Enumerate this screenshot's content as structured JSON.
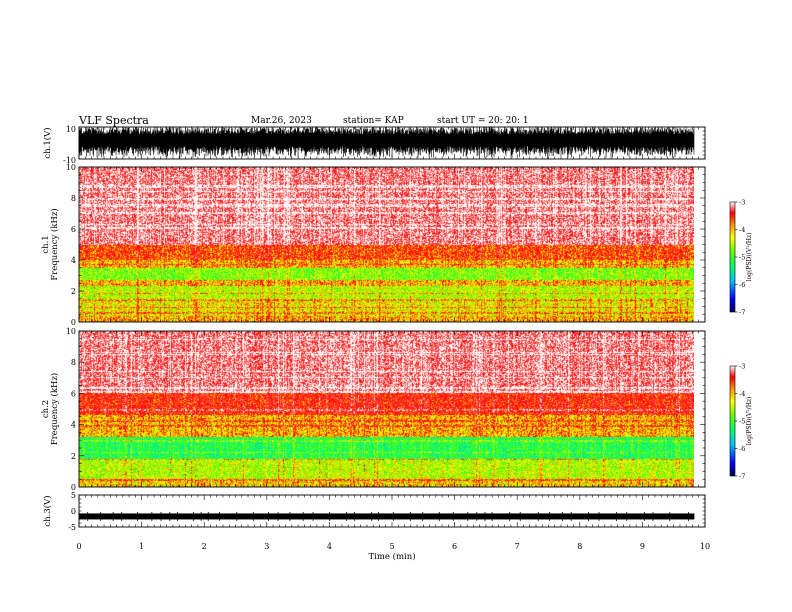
{
  "header": {
    "title": "VLF Spectra",
    "date": "Mar.26, 2023",
    "station": "station= KAP",
    "start": "start  UT  =   20: 20: 1"
  },
  "chart_data": [
    {
      "type": "line",
      "name": "ch1-waveform",
      "ylabel": "ch.1(V)",
      "ylim": [
        -10,
        10
      ],
      "y_tick_labels": [
        "-10",
        "10"
      ],
      "xlim": [
        0,
        10
      ],
      "x_data_end": 9.83
    },
    {
      "type": "heatmap",
      "name": "ch1-spectrogram",
      "ylabel_line1": "ch.1",
      "ylabel_line2": "Frequency  (kHz)",
      "ylim": [
        0,
        10
      ],
      "y_ticks": [
        0,
        2,
        4,
        6,
        8,
        10
      ],
      "xlim": [
        0,
        10
      ],
      "x_data_end": 9.83,
      "bands": [
        {
          "from": 0,
          "to": 0.4,
          "level": -4.3
        },
        {
          "from": 0.4,
          "to": 1.4,
          "level": -4.5
        },
        {
          "from": 1.4,
          "to": 2.3,
          "level": -4.7
        },
        {
          "from": 2.3,
          "to": 2.7,
          "level": -4.3
        },
        {
          "from": 2.7,
          "to": 3.5,
          "level": -4.9
        },
        {
          "from": 3.5,
          "to": 4.0,
          "level": -4.3
        },
        {
          "from": 4.0,
          "to": 5.0,
          "level": -4.0
        },
        {
          "from": 5.0,
          "to": 10.0,
          "level": -3.3
        }
      ],
      "colorbar": {
        "min": -7,
        "max": -3,
        "ticks": [
          -3,
          -4,
          -5,
          -6,
          -7
        ],
        "label": "log(PSD)(V²/Hz)"
      }
    },
    {
      "type": "heatmap",
      "name": "ch2-spectrogram",
      "ylabel_line1": "ch.2",
      "ylabel_line2": "Frequency  (kHz)",
      "ylim": [
        0,
        10
      ],
      "y_ticks": [
        0,
        2,
        4,
        6,
        8,
        10
      ],
      "xlim": [
        0,
        10
      ],
      "x_data_end": 9.83,
      "bands": [
        {
          "from": 0,
          "to": 0.5,
          "level": -4.4
        },
        {
          "from": 0.5,
          "to": 1.8,
          "level": -4.7
        },
        {
          "from": 1.8,
          "to": 3.2,
          "level": -5.3
        },
        {
          "from": 3.2,
          "to": 4.6,
          "level": -4.3
        },
        {
          "from": 4.6,
          "to": 6.0,
          "level": -3.8
        },
        {
          "from": 6.0,
          "to": 10.0,
          "level": -3.3
        }
      ],
      "colorbar": {
        "min": -7,
        "max": -3,
        "ticks": [
          -3,
          -4,
          -5,
          -6,
          -7
        ],
        "label": "log(PSD)(V²/Hz)"
      }
    },
    {
      "type": "line",
      "name": "ch3-waveform",
      "ylabel": "ch.3(V)",
      "ylim": [
        -5,
        5
      ],
      "y_ticks": [
        -5,
        0,
        5
      ],
      "xlim": [
        0,
        10
      ],
      "x_data_end": 9.83,
      "level": -1.7,
      "xlabel": "Time  (min)",
      "x_ticks": [
        0,
        1,
        2,
        3,
        4,
        5,
        6,
        7,
        8,
        9,
        10
      ]
    }
  ]
}
